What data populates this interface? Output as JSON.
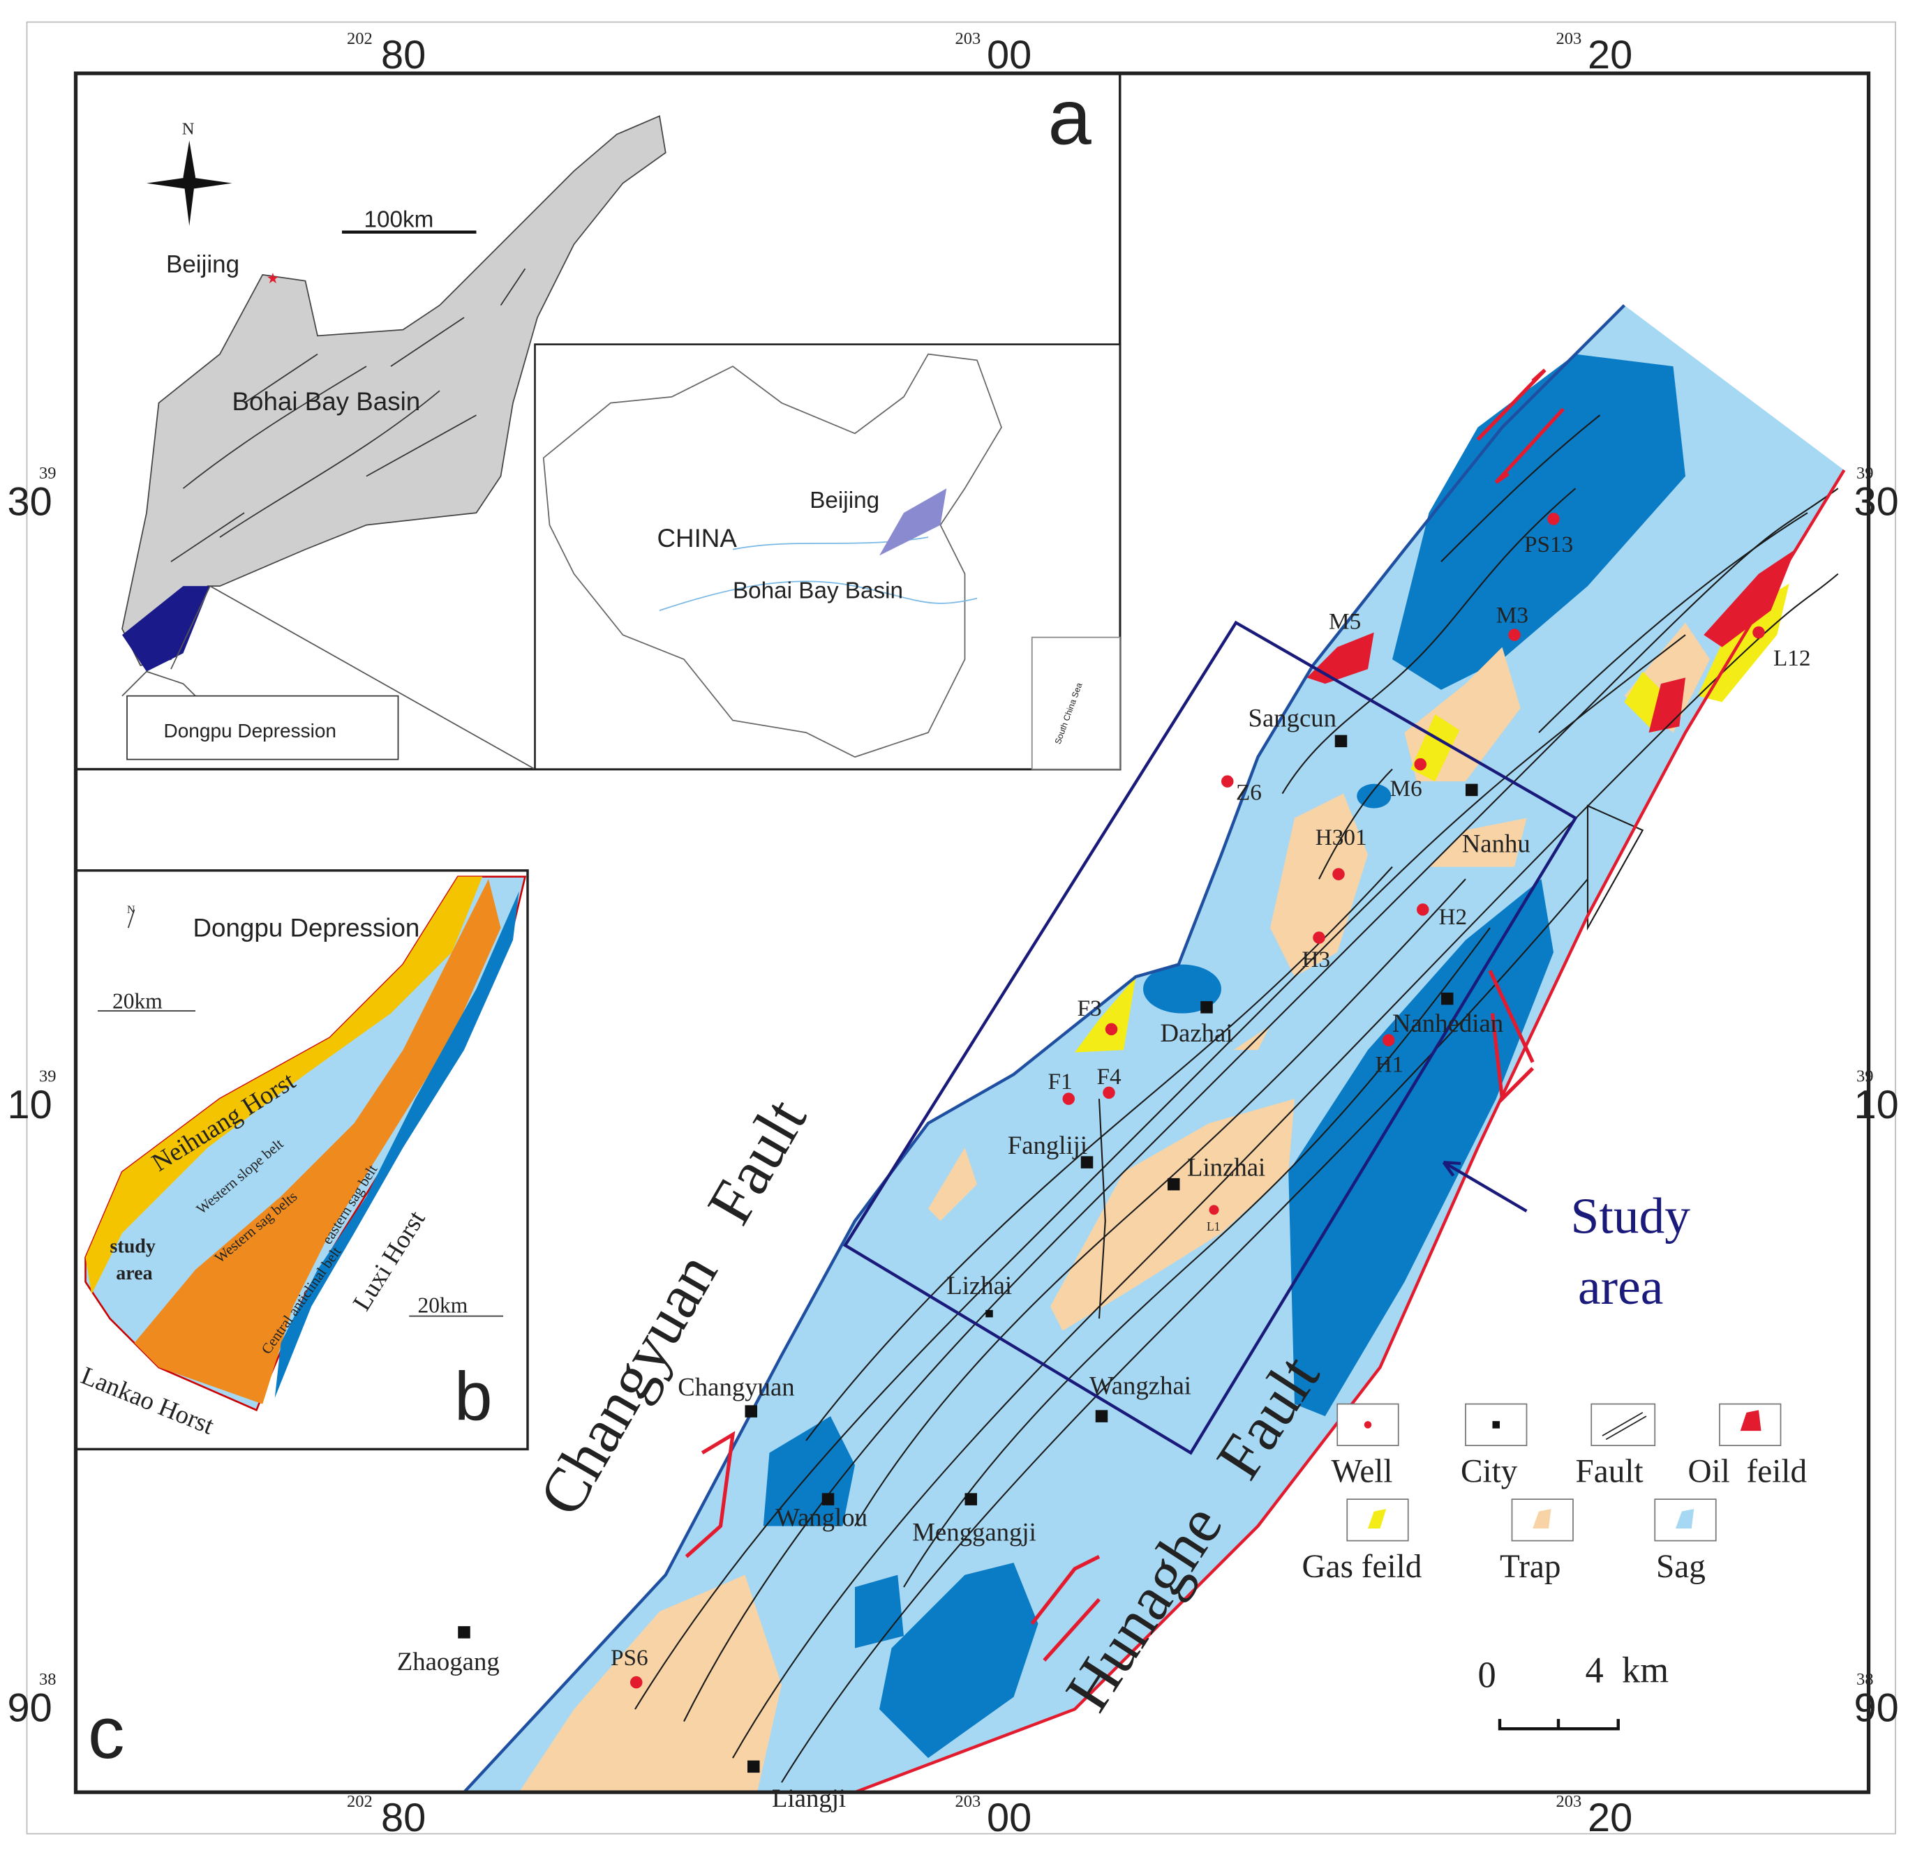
{
  "coordinates": {
    "top": [
      {
        "super": "202",
        "main": "80"
      },
      {
        "super": "203",
        "main": "00"
      },
      {
        "super": "203",
        "main": "20"
      }
    ],
    "bottom": [
      {
        "super": "202",
        "main": "80"
      },
      {
        "super": "203",
        "main": "00"
      },
      {
        "super": "203",
        "main": "20"
      }
    ],
    "left": [
      {
        "super": "39",
        "main": "30"
      },
      {
        "super": "39",
        "main": "10"
      },
      {
        "super": "38",
        "main": "90"
      }
    ],
    "right": [
      {
        "super": "39",
        "main": "30"
      },
      {
        "super": "39",
        "main": "10"
      },
      {
        "super": "38",
        "main": "90"
      }
    ]
  },
  "panel_a": {
    "label": "a",
    "north": "N",
    "scale": "100km",
    "beijing": "Beijing",
    "basin": "Bohai Bay Basin",
    "depression": "Dongpu Depression",
    "inset": {
      "country": "CHINA",
      "beijing": "Beijing",
      "basin": "Bohai Bay Basin",
      "sea": "South China Sea"
    }
  },
  "panel_b": {
    "label": "b",
    "title": "Dongpu Depression",
    "north": "N",
    "scales": [
      "20km",
      "20km"
    ],
    "horsts": [
      "Neihuang Horst",
      "Luxi Horst",
      "Lankao Horst"
    ],
    "belts": [
      "Western slope belt",
      "Western sag belts",
      "Central anticlinal belt",
      "eastern sag belt"
    ],
    "study_area": [
      "study",
      "area"
    ]
  },
  "panel_c": {
    "label": "c",
    "wells": [
      "PS13",
      "M3",
      "M5",
      "L12",
      "M6",
      "Z6",
      "H301",
      "H2",
      "H3",
      "F3",
      "H1",
      "F1",
      "F4",
      "L1",
      "PS6"
    ],
    "cities": [
      "Sangcun",
      "Nanhu",
      "Dazhai",
      "Nanhedian",
      "Fangliji",
      "Linzhai",
      "Lizhai",
      "Changyuan",
      "Wangzhai",
      "Wanglou",
      "Menggangji",
      "Zhaogang",
      "Liangji"
    ],
    "faults": [
      "Changyuan   Fault",
      "Hunaghe   Fault"
    ],
    "study_area": [
      "Study",
      "area"
    ],
    "legend": [
      "Well",
      "City",
      "Fault",
      "Oil  feild",
      "Gas feild",
      "Trap",
      "Sag"
    ],
    "scale_bar": {
      "zero": "0",
      "length": "4  km"
    }
  }
}
